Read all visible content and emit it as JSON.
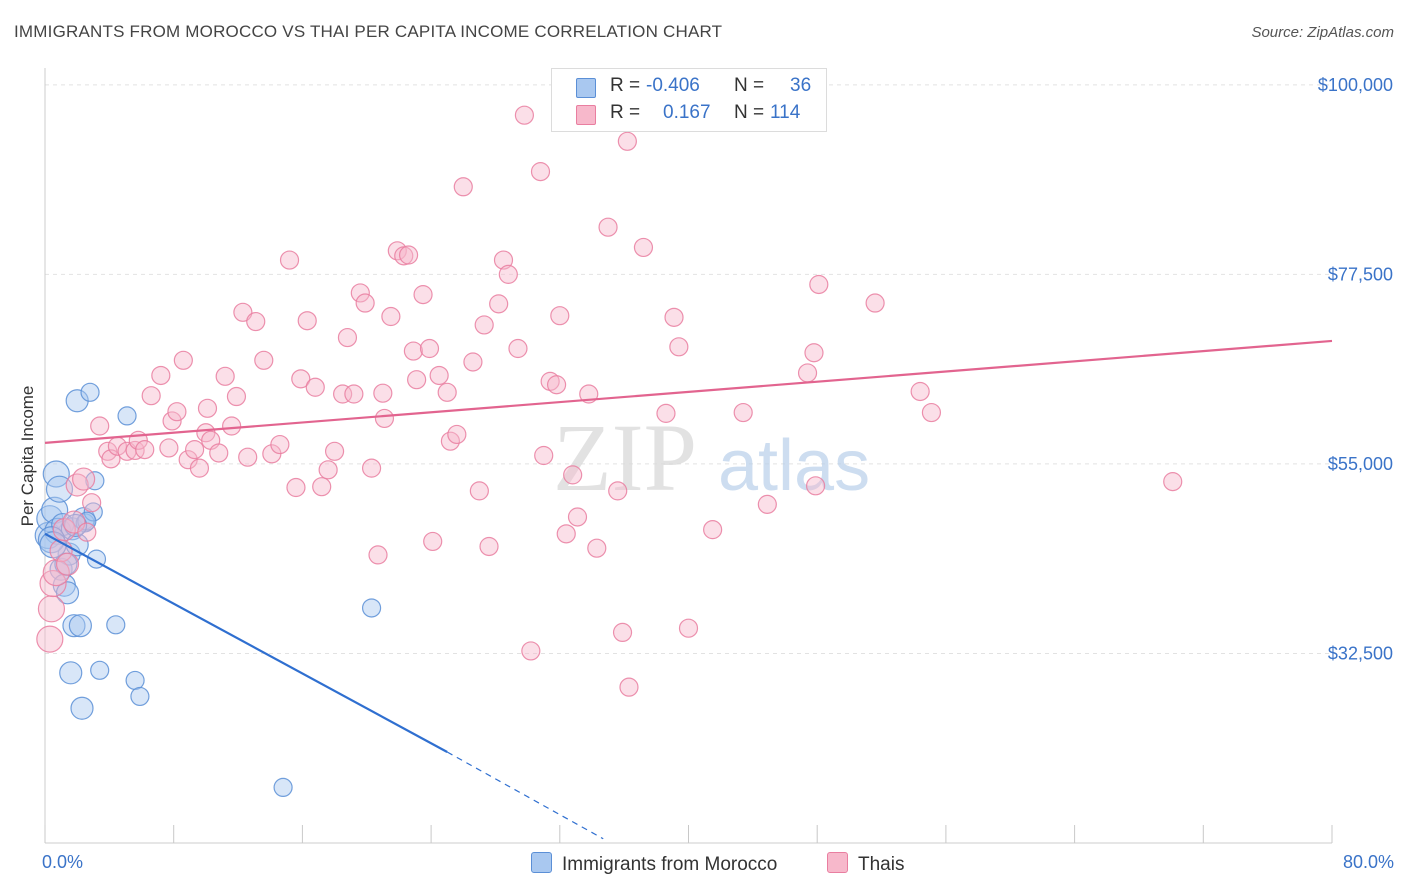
{
  "title": "IMMIGRANTS FROM MOROCCO VS THAI PER CAPITA INCOME CORRELATION CHART",
  "source": "Source: ZipAtlas.com",
  "watermark": {
    "zip": "ZIP",
    "atlas": "atlas"
  },
  "legend": {
    "rows": [
      {
        "r_label": "R =",
        "r_value": "-0.406",
        "n_label": "N =",
        "n_value": "36",
        "color": "#a9c8f0"
      },
      {
        "r_label": "R =",
        "r_value": "0.167",
        "n_label": "N =",
        "n_value": "114",
        "color": "#f7b8cb"
      }
    ]
  },
  "bottom_legend": [
    {
      "label": "Immigrants from Morocco",
      "color": "#a9c8f0"
    },
    {
      "label": "Thais",
      "color": "#f7b8cb"
    }
  ],
  "chart_data": {
    "type": "scatter",
    "title": "IMMIGRANTS FROM MOROCCO VS THAI PER CAPITA INCOME CORRELATION CHART",
    "xlabel": "",
    "ylabel": "Per Capita Income",
    "xlim": [
      0,
      80
    ],
    "ylim": [
      10000,
      102000
    ],
    "x_tick_labels": [
      "0.0%",
      "80.0%"
    ],
    "y_ticks": [
      {
        "value": 32500,
        "label": "$32,500"
      },
      {
        "value": 55000,
        "label": "$55,000"
      },
      {
        "value": 77500,
        "label": "$77,500"
      },
      {
        "value": 100000,
        "label": "$100,000"
      }
    ],
    "grid": true,
    "series": [
      {
        "name": "Immigrants from Morocco",
        "color": "#5b8fd6",
        "fill": "#a9c8f0",
        "trend": {
          "x0": 0,
          "y0": 46700,
          "x1": 25,
          "y1": 20800,
          "dash_to_x": 34.7,
          "dash_to_y": 10500,
          "color": "#2f6fd0"
        },
        "points": [
          [
            0.2,
            46500
          ],
          [
            0.3,
            48500
          ],
          [
            0.6,
            49500
          ],
          [
            0.7,
            53800
          ],
          [
            0.8,
            47000
          ],
          [
            0.9,
            52000
          ],
          [
            1.0,
            42500
          ],
          [
            1.1,
            47800
          ],
          [
            1.2,
            40600
          ],
          [
            1.4,
            39700
          ],
          [
            1.5,
            44300
          ],
          [
            1.6,
            30200
          ],
          [
            1.7,
            47300
          ],
          [
            1.8,
            35800
          ],
          [
            2.0,
            45400
          ],
          [
            2.0,
            62500
          ],
          [
            2.2,
            35800
          ],
          [
            2.3,
            26000
          ],
          [
            2.4,
            48500
          ],
          [
            2.5,
            48000
          ],
          [
            2.8,
            63500
          ],
          [
            3.0,
            49300
          ],
          [
            3.1,
            53000
          ],
          [
            3.2,
            43700
          ],
          [
            3.4,
            30500
          ],
          [
            4.4,
            35900
          ],
          [
            5.1,
            60700
          ],
          [
            5.6,
            29300
          ],
          [
            5.9,
            27400
          ],
          [
            20.3,
            37900
          ],
          [
            14.8,
            16600
          ],
          [
            0.4,
            46000
          ],
          [
            1.3,
            43100
          ],
          [
            0.5,
            45400
          ],
          [
            2.6,
            48200
          ],
          [
            1.9,
            47700
          ]
        ]
      },
      {
        "name": "Thais",
        "color": "#e97ea0",
        "fill": "#f7b8cb",
        "trend": {
          "x0": 0,
          "y0": 57500,
          "x1": 80,
          "y1": 69600,
          "color": "#e2648f"
        },
        "points": [
          [
            0.3,
            34200
          ],
          [
            0.4,
            37800
          ],
          [
            0.5,
            40800
          ],
          [
            0.7,
            42100
          ],
          [
            1.0,
            44700
          ],
          [
            1.2,
            47200
          ],
          [
            1.4,
            43100
          ],
          [
            1.8,
            48100
          ],
          [
            2.0,
            52500
          ],
          [
            2.4,
            53200
          ],
          [
            2.6,
            46900
          ],
          [
            2.9,
            50400
          ],
          [
            3.4,
            59500
          ],
          [
            3.9,
            56500
          ],
          [
            4.1,
            55600
          ],
          [
            4.5,
            57100
          ],
          [
            5.1,
            56500
          ],
          [
            5.6,
            56600
          ],
          [
            5.8,
            57800
          ],
          [
            6.2,
            56700
          ],
          [
            6.6,
            63100
          ],
          [
            7.2,
            65500
          ],
          [
            7.7,
            56900
          ],
          [
            7.9,
            60100
          ],
          [
            8.2,
            61200
          ],
          [
            8.6,
            67300
          ],
          [
            8.9,
            55500
          ],
          [
            9.3,
            56700
          ],
          [
            9.6,
            54500
          ],
          [
            10.0,
            58700
          ],
          [
            10.1,
            61600
          ],
          [
            10.3,
            57800
          ],
          [
            10.8,
            56300
          ],
          [
            11.2,
            65400
          ],
          [
            11.6,
            59500
          ],
          [
            11.9,
            63000
          ],
          [
            12.3,
            73000
          ],
          [
            12.6,
            55800
          ],
          [
            13.1,
            71900
          ],
          [
            13.6,
            67300
          ],
          [
            14.1,
            56200
          ],
          [
            14.6,
            57300
          ],
          [
            15.2,
            79200
          ],
          [
            15.6,
            52200
          ],
          [
            15.9,
            65100
          ],
          [
            16.3,
            72000
          ],
          [
            16.8,
            64100
          ],
          [
            17.2,
            52300
          ],
          [
            17.6,
            54300
          ],
          [
            18.0,
            56500
          ],
          [
            18.5,
            63300
          ],
          [
            18.8,
            70000
          ],
          [
            19.2,
            63300
          ],
          [
            19.6,
            75300
          ],
          [
            19.9,
            74100
          ],
          [
            20.3,
            54500
          ],
          [
            20.7,
            44200
          ],
          [
            21.0,
            63400
          ],
          [
            21.1,
            60400
          ],
          [
            21.5,
            72500
          ],
          [
            21.9,
            80300
          ],
          [
            22.3,
            79700
          ],
          [
            22.6,
            79800
          ],
          [
            22.9,
            68400
          ],
          [
            23.1,
            65000
          ],
          [
            23.5,
            75100
          ],
          [
            23.9,
            68700
          ],
          [
            24.1,
            45800
          ],
          [
            24.5,
            65500
          ],
          [
            25.0,
            63500
          ],
          [
            25.2,
            57700
          ],
          [
            25.6,
            58500
          ],
          [
            26.0,
            87900
          ],
          [
            26.6,
            67100
          ],
          [
            27.0,
            51800
          ],
          [
            27.3,
            71500
          ],
          [
            27.6,
            45200
          ],
          [
            28.2,
            74000
          ],
          [
            28.5,
            79200
          ],
          [
            28.8,
            77500
          ],
          [
            29.4,
            68700
          ],
          [
            29.8,
            96400
          ],
          [
            30.2,
            32800
          ],
          [
            30.8,
            89700
          ],
          [
            31.0,
            56000
          ],
          [
            31.4,
            64800
          ],
          [
            31.8,
            64400
          ],
          [
            32.0,
            72600
          ],
          [
            32.4,
            46700
          ],
          [
            32.8,
            53700
          ],
          [
            33.1,
            48700
          ],
          [
            33.8,
            63300
          ],
          [
            34.3,
            45000
          ],
          [
            35.0,
            83100
          ],
          [
            35.6,
            51800
          ],
          [
            35.9,
            35000
          ],
          [
            36.3,
            28500
          ],
          [
            36.2,
            93300
          ],
          [
            37.2,
            80700
          ],
          [
            38.6,
            61000
          ],
          [
            39.1,
            72400
          ],
          [
            39.4,
            68900
          ],
          [
            40.0,
            35500
          ],
          [
            41.5,
            47200
          ],
          [
            43.4,
            61100
          ],
          [
            44.9,
            50200
          ],
          [
            47.4,
            65800
          ],
          [
            47.8,
            68200
          ],
          [
            47.9,
            52400
          ],
          [
            48.1,
            76300
          ],
          [
            51.6,
            74100
          ],
          [
            54.4,
            63600
          ],
          [
            55.1,
            61100
          ],
          [
            70.1,
            52900
          ]
        ]
      }
    ]
  }
}
